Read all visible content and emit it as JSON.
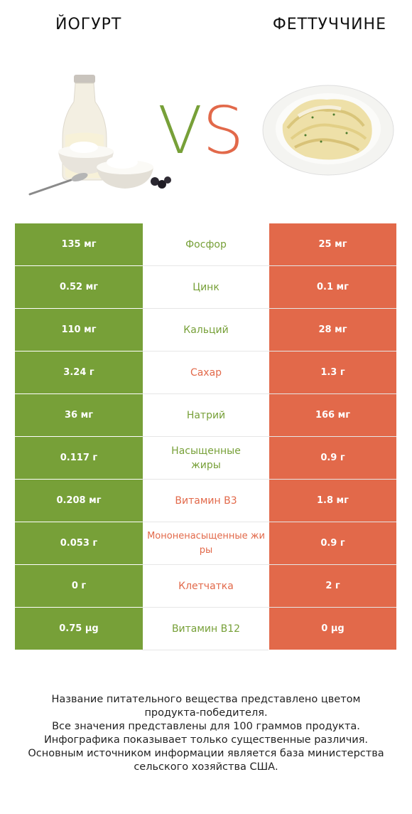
{
  "header": {
    "left_title": "ЙОГУРТ",
    "right_title": "ФЕТТУЧЧИНЕ"
  },
  "vs": {
    "v": "V",
    "s": "S"
  },
  "colors": {
    "left": "#77a038",
    "right": "#e2694a"
  },
  "rows": [
    {
      "left": "135 мг",
      "nutrient": "Фосфор",
      "right": "25 мг",
      "winner": "left"
    },
    {
      "left": "0.52 мг",
      "nutrient": "Цинк",
      "right": "0.1 мг",
      "winner": "left"
    },
    {
      "left": "110 мг",
      "nutrient": "Кальций",
      "right": "28 мг",
      "winner": "left"
    },
    {
      "left": "3.24 г",
      "nutrient": "Сахар",
      "right": "1.3 г",
      "winner": "right"
    },
    {
      "left": "36 мг",
      "nutrient": "Натрий",
      "right": "166 мг",
      "winner": "left"
    },
    {
      "left": "0.117 г",
      "nutrient": "Насыщенные жиры",
      "right": "0.9 г",
      "winner": "left"
    },
    {
      "left": "0.208 мг",
      "nutrient": "Витамин B3",
      "right": "1.8 мг",
      "winner": "right"
    },
    {
      "left": "0.053 г",
      "nutrient": "Мононенасыщенные жиры",
      "right": "0.9 г",
      "winner": "right"
    },
    {
      "left": "0 г",
      "nutrient": "Клетчатка",
      "right": "2 г",
      "winner": "right"
    },
    {
      "left": "0.75 µg",
      "nutrient": "Витамин B12",
      "right": "0 µg",
      "winner": "left"
    }
  ],
  "footer": {
    "line1": "Название питательного вещества представлено цветом",
    "line2": "продукта-победителя.",
    "line3": "Все значения представлены для 100 граммов продукта.",
    "line4": "Инфографика показывает только существенные различия.",
    "line5": "Основным источником информации является база министерства",
    "line6": "сельского хозяйства США."
  }
}
